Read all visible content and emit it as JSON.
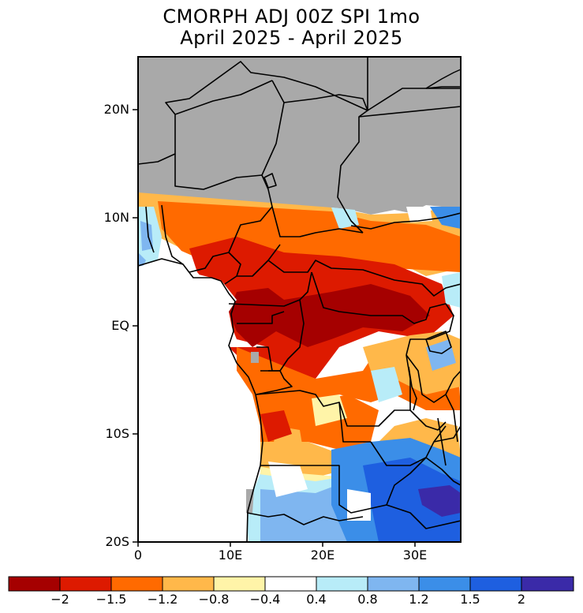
{
  "map": {
    "title_line1": "CMORPH ADJ 00Z SPI 1mo",
    "title_line2": "April 2025 - April 2025",
    "lat_labels": [
      "20N",
      "10N",
      "EQ",
      "10S",
      "20S"
    ],
    "lon_labels": [
      "0",
      "10E",
      "20E",
      "30E"
    ],
    "colors": {
      "land_no_data": "#a9a9a9",
      "ocean": "#ffffff",
      "border": "#000000"
    }
  },
  "legend": {
    "labels": [
      "-2",
      "-1.5",
      "-1.2",
      "-0.8",
      "-0.4",
      "0.4",
      "0.8",
      "1.2",
      "1.5",
      "2"
    ],
    "colors": [
      "#a50000",
      "#dd1a00",
      "#ff6a00",
      "#ffb84a",
      "#fff4a8",
      "#ffffff",
      "#b8ecf8",
      "#7fb6f0",
      "#3b8ee8",
      "#1e5fe0",
      "#3a2aa8"
    ]
  }
}
